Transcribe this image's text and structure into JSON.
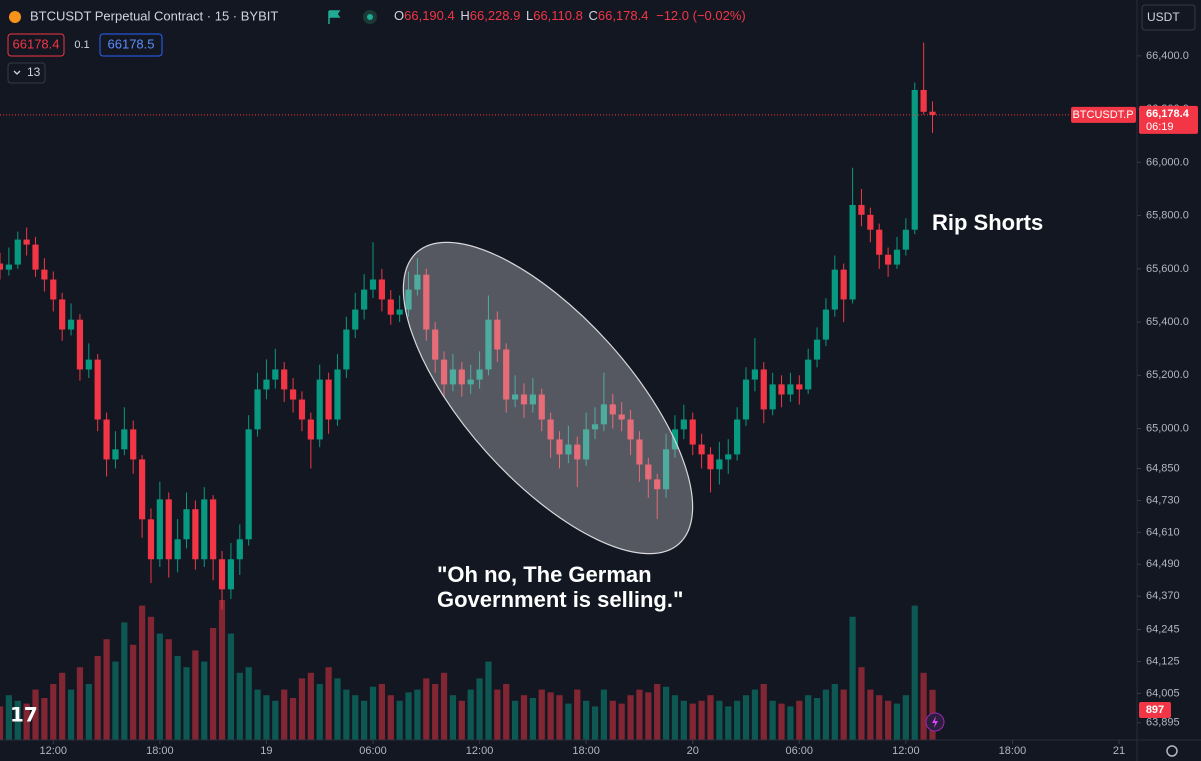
{
  "toolbar": {
    "symbol": "BTCUSDT Perpetual Contract · 15 · BYBIT",
    "ohlc": [
      {
        "key": "O",
        "value": "66,190.4"
      },
      {
        "key": "H",
        "value": "66,228.9"
      },
      {
        "key": "L",
        "value": "66,110.8"
      },
      {
        "key": "C",
        "value": "66,178.4"
      }
    ],
    "change": "−12.0 (−0.02%)",
    "sell_price": "66178.4",
    "spread": "0.1",
    "buy_price": "66178.5",
    "indicator_count": "13",
    "currency": "USDT"
  },
  "chart_data": {
    "type": "candlestick",
    "colors": {
      "up": "#089981",
      "down": "#f23645"
    },
    "x": [
      9,
      9.5,
      10,
      10.5,
      11,
      11.5,
      12,
      12.5,
      13,
      13.5,
      14,
      14.5,
      15,
      15.5,
      16,
      16.5,
      17,
      17.5,
      18,
      18.5,
      19,
      19.5,
      20,
      20.5,
      21,
      21.5,
      22,
      22.5,
      23,
      23.5,
      24,
      24.5,
      25,
      25.5,
      26,
      26.5,
      27,
      27.5,
      28,
      28.5,
      29,
      29.5,
      30,
      30.5,
      31,
      31.5,
      32,
      32.5,
      33,
      33.5,
      34,
      34.5,
      35,
      35.5,
      36,
      36.5,
      37,
      37.5,
      38,
      38.5,
      39,
      39.5,
      40,
      40.5,
      41,
      41.5,
      42,
      42.5,
      43,
      43.5,
      44,
      44.5,
      45,
      45.5,
      46,
      46.5,
      47,
      47.5,
      48,
      48.5,
      49,
      49.5,
      50,
      50.5,
      51,
      51.5,
      52,
      52.5,
      53,
      53.5,
      54,
      54.5,
      55,
      55.5,
      56,
      56.5,
      57,
      57.5,
      58,
      58.5,
      59,
      59.5,
      60,
      60.5,
      61,
      61.5
    ],
    "candles": [
      [
        65620,
        65660,
        65560,
        65597
      ],
      [
        65597,
        65680,
        65575,
        65616
      ],
      [
        65616,
        65740,
        65600,
        65710
      ],
      [
        65710,
        65755,
        65650,
        65691
      ],
      [
        65691,
        65720,
        65570,
        65597
      ],
      [
        65597,
        65640,
        65515,
        65560
      ],
      [
        65560,
        65590,
        65440,
        65485
      ],
      [
        65485,
        65510,
        65330,
        65372
      ],
      [
        65372,
        65470,
        65350,
        65409
      ],
      [
        65409,
        65430,
        65180,
        65222
      ],
      [
        65222,
        65320,
        65190,
        65259
      ],
      [
        65259,
        65280,
        64990,
        65034
      ],
      [
        65034,
        65060,
        64820,
        64884
      ],
      [
        64884,
        64990,
        64850,
        64922
      ],
      [
        64922,
        65080,
        64900,
        64997
      ],
      [
        64997,
        65030,
        64830,
        64884
      ],
      [
        64884,
        64900,
        64590,
        64659
      ],
      [
        64659,
        64700,
        64420,
        64509
      ],
      [
        64509,
        64800,
        64480,
        64734
      ],
      [
        64734,
        64760,
        64440,
        64509
      ],
      [
        64509,
        64660,
        64460,
        64584
      ],
      [
        64584,
        64760,
        64550,
        64697
      ],
      [
        64697,
        64730,
        64470,
        64509
      ],
      [
        64509,
        64780,
        64480,
        64734
      ],
      [
        64734,
        64750,
        64430,
        64509
      ],
      [
        64509,
        64540,
        64320,
        64396
      ],
      [
        64396,
        64570,
        64360,
        64509
      ],
      [
        64509,
        64640,
        64450,
        64584
      ],
      [
        64584,
        65050,
        64560,
        64997
      ],
      [
        64997,
        65210,
        64970,
        65147
      ],
      [
        65147,
        65260,
        65110,
        65184
      ],
      [
        65184,
        65300,
        65150,
        65222
      ],
      [
        65222,
        65250,
        65100,
        65147
      ],
      [
        65147,
        65190,
        65060,
        65109
      ],
      [
        65109,
        65140,
        64990,
        65034
      ],
      [
        65034,
        65060,
        64850,
        64959
      ],
      [
        64959,
        65240,
        64930,
        65184
      ],
      [
        65184,
        65210,
        64980,
        65034
      ],
      [
        65034,
        65280,
        65010,
        65222
      ],
      [
        65222,
        65420,
        65190,
        65372
      ],
      [
        65372,
        65510,
        65340,
        65447
      ],
      [
        65447,
        65580,
        65410,
        65522
      ],
      [
        65522,
        65700,
        65490,
        65560
      ],
      [
        65560,
        65600,
        65440,
        65485
      ],
      [
        65485,
        65520,
        65390,
        65428
      ],
      [
        65428,
        65500,
        65400,
        65447
      ],
      [
        65447,
        65590,
        65420,
        65522
      ],
      [
        65522,
        65640,
        65500,
        65578
      ],
      [
        65578,
        65600,
        65330,
        65372
      ],
      [
        65372,
        65400,
        65210,
        65259
      ],
      [
        65259,
        65290,
        65120,
        65166
      ],
      [
        65166,
        65280,
        65140,
        65222
      ],
      [
        65222,
        65250,
        65120,
        65166
      ],
      [
        65166,
        65240,
        65130,
        65184
      ],
      [
        65184,
        65290,
        65150,
        65222
      ],
      [
        65222,
        65500,
        65200,
        65409
      ],
      [
        65409,
        65440,
        65250,
        65297
      ],
      [
        65297,
        65320,
        65060,
        65109
      ],
      [
        65109,
        65200,
        65080,
        65128
      ],
      [
        65128,
        65170,
        65040,
        65091
      ],
      [
        65091,
        65190,
        65060,
        65128
      ],
      [
        65128,
        65150,
        64990,
        65034
      ],
      [
        65034,
        65060,
        64890,
        64959
      ],
      [
        64959,
        64990,
        64850,
        64903
      ],
      [
        64903,
        65010,
        64870,
        64940
      ],
      [
        64940,
        64970,
        64780,
        64884
      ],
      [
        64884,
        65060,
        64860,
        64997
      ],
      [
        64997,
        65080,
        64960,
        65016
      ],
      [
        65016,
        65210,
        64990,
        65091
      ],
      [
        65091,
        65130,
        65000,
        65053
      ],
      [
        65053,
        65100,
        64990,
        65034
      ],
      [
        65034,
        65070,
        64900,
        64959
      ],
      [
        64959,
        64990,
        64800,
        64865
      ],
      [
        64865,
        64890,
        64740,
        64809
      ],
      [
        64809,
        64830,
        64660,
        64772
      ],
      [
        64772,
        64980,
        64740,
        64922
      ],
      [
        64922,
        65050,
        64890,
        64997
      ],
      [
        64997,
        65090,
        64960,
        65034
      ],
      [
        65034,
        65060,
        64900,
        64940
      ],
      [
        64940,
        64980,
        64850,
        64903
      ],
      [
        64903,
        64930,
        64760,
        64847
      ],
      [
        64847,
        64950,
        64790,
        64884
      ],
      [
        64884,
        64960,
        64830,
        64903
      ],
      [
        64903,
        65080,
        64880,
        65034
      ],
      [
        65034,
        65230,
        65010,
        65184
      ],
      [
        65184,
        65340,
        65140,
        65222
      ],
      [
        65222,
        65250,
        65020,
        65072
      ],
      [
        65072,
        65210,
        65050,
        65166
      ],
      [
        65166,
        65200,
        65080,
        65128
      ],
      [
        65128,
        65210,
        65100,
        65166
      ],
      [
        65166,
        65200,
        65090,
        65147
      ],
      [
        65147,
        65300,
        65130,
        65259
      ],
      [
        65259,
        65380,
        65230,
        65334
      ],
      [
        65334,
        65490,
        65310,
        65447
      ],
      [
        65447,
        65650,
        65420,
        65597
      ],
      [
        65597,
        65620,
        65400,
        65485
      ],
      [
        65485,
        65980,
        65470,
        65840
      ],
      [
        65840,
        65900,
        65760,
        65803
      ],
      [
        65803,
        65830,
        65700,
        65747
      ],
      [
        65747,
        65770,
        65600,
        65653
      ],
      [
        65653,
        65680,
        65570,
        65616
      ],
      [
        65616,
        65720,
        65600,
        65672
      ],
      [
        65672,
        65790,
        65650,
        65747
      ],
      [
        65747,
        66300,
        65730,
        66272
      ],
      [
        66272,
        66450,
        66180,
        66190
      ],
      [
        66190.4,
        66228.9,
        66110.8,
        66178.4
      ]
    ],
    "volume": [
      600,
      800,
      700,
      650,
      900,
      750,
      1000,
      1200,
      900,
      1300,
      1000,
      1500,
      1800,
      1400,
      2100,
      1700,
      2400,
      2200,
      1900,
      1800,
      1500,
      1300,
      1600,
      1400,
      2000,
      2500,
      1900,
      1200,
      1300,
      900,
      800,
      700,
      900,
      750,
      1100,
      1200,
      1000,
      1300,
      1100,
      900,
      800,
      700,
      950,
      1000,
      800,
      700,
      850,
      900,
      1100,
      1000,
      1200,
      800,
      700,
      900,
      1100,
      1400,
      900,
      1000,
      700,
      800,
      750,
      900,
      850,
      800,
      650,
      900,
      700,
      600,
      900,
      700,
      650,
      800,
      900,
      850,
      1000,
      950,
      800,
      700,
      650,
      700,
      800,
      700,
      600,
      700,
      800,
      900,
      1000,
      700,
      650,
      600,
      700,
      800,
      750,
      900,
      1000,
      900,
      2200,
      1300,
      900,
      800,
      700,
      650,
      800,
      2400,
      1200,
      897
    ],
    "xlim": [
      9,
      72.9
    ],
    "xticks": [
      {
        "value": 12,
        "label": "12:00"
      },
      {
        "value": 18,
        "label": "18:00"
      },
      {
        "value": 24,
        "label": "19"
      },
      {
        "value": 30,
        "label": "06:00"
      },
      {
        "value": 36,
        "label": "12:00"
      },
      {
        "value": 42,
        "label": "18:00"
      },
      {
        "value": 48,
        "label": "20"
      },
      {
        "value": 54,
        "label": "06:00"
      },
      {
        "value": 60,
        "label": "12:00"
      },
      {
        "value": 66,
        "label": "18:00"
      },
      {
        "value": 72,
        "label": "21"
      }
    ],
    "ylim": [
      63830,
      66610
    ],
    "yticks": [
      {
        "value": 66400,
        "label": "66,400.0"
      },
      {
        "value": 66200,
        "label": "66,200.0"
      },
      {
        "value": 66000,
        "label": "66,000.0"
      },
      {
        "value": 65800,
        "label": "65,800.0"
      },
      {
        "value": 65600,
        "label": "65,600.0"
      },
      {
        "value": 65400,
        "label": "65,400.0"
      },
      {
        "value": 65200,
        "label": "65,200.0"
      },
      {
        "value": 65000,
        "label": "65,000.0"
      },
      {
        "value": 64850,
        "label": "64,850"
      },
      {
        "value": 64730,
        "label": "64,730"
      },
      {
        "value": 64610,
        "label": "64,610"
      },
      {
        "value": 64490,
        "label": "64,490"
      },
      {
        "value": 64370,
        "label": "64,370"
      },
      {
        "value": 64245,
        "label": "64,245"
      },
      {
        "value": 64125,
        "label": "64,125"
      },
      {
        "value": 64005,
        "label": "64,005"
      },
      {
        "value": 63895,
        "label": "63,895"
      }
    ],
    "last_price": {
      "value": 66178.4,
      "label": "66,178.4"
    },
    "symbol_label": "BTCUSDT.P",
    "countdown": "06:19",
    "annotations": [
      {
        "lines": [
          "Rip Shorts"
        ]
      },
      {
        "lines": [
          "\"Oh no, The German",
          "Government is selling.\""
        ]
      }
    ]
  }
}
